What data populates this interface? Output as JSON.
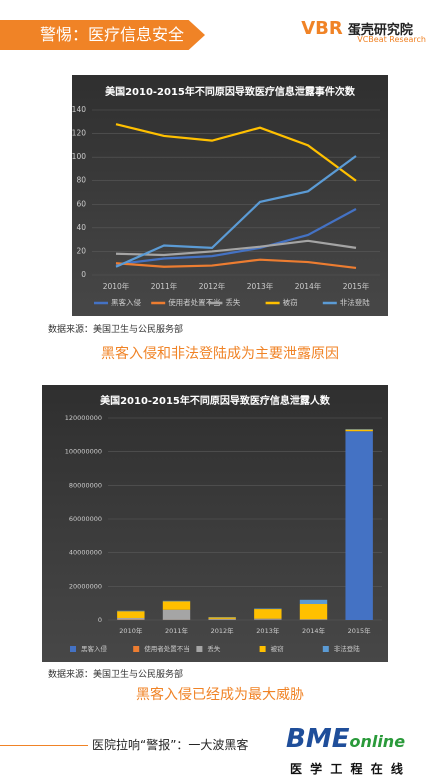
{
  "header": {
    "title": "警惕：医疗信息安全",
    "logo_mark": "VBR",
    "logo_name": "蛋壳研究院",
    "logo_sub": "VCBeat Research"
  },
  "chart_data": [
    {
      "type": "line",
      "title": "美国2010-2015年不同原因导致医疗信息泄露事件次数",
      "categories": [
        "2010年",
        "2011年",
        "2012年",
        "2013年",
        "2014年",
        "2015年"
      ],
      "ylim": [
        0,
        140
      ],
      "yticks": [
        0,
        20,
        40,
        60,
        80,
        100,
        120,
        140
      ],
      "grid": true,
      "series": [
        {
          "name": "黑客入侵",
          "color": "#4472c4",
          "values": [
            9,
            14,
            16,
            23,
            34,
            56
          ]
        },
        {
          "name": "使用者处置不当",
          "color": "#ed7d31",
          "values": [
            10,
            7,
            8,
            13,
            11,
            6
          ]
        },
        {
          "name": "丢失",
          "color": "#a5a5a5",
          "values": [
            18,
            17,
            20,
            24,
            29,
            23
          ]
        },
        {
          "name": "被窃",
          "color": "#ffc000",
          "values": [
            128,
            118,
            114,
            125,
            110,
            80
          ]
        },
        {
          "name": "非法登陆",
          "color": "#5b9bd5",
          "values": [
            7,
            25,
            23,
            62,
            71,
            101
          ]
        }
      ]
    },
    {
      "type": "bar",
      "stacked": true,
      "title": "美国2010-2015年不同原因导致医疗信息泄露人数",
      "categories": [
        "2010年",
        "2011年",
        "2012年",
        "2013年",
        "2014年",
        "2015年"
      ],
      "ylim": [
        0,
        120000000
      ],
      "yticks": [
        0,
        20000000,
        40000000,
        60000000,
        80000000,
        100000000,
        120000000
      ],
      "grid": true,
      "series": [
        {
          "name": "黑客入侵",
          "color": "#4472c4",
          "values": [
            0,
            0,
            0,
            200000,
            0,
            112000000
          ]
        },
        {
          "name": "使用者处置不当",
          "color": "#ed7d31",
          "values": [
            200000,
            100000,
            100000,
            100000,
            100000,
            100000
          ]
        },
        {
          "name": "丢失",
          "color": "#a5a5a5",
          "values": [
            1000000,
            6000000,
            600000,
            500000,
            400000,
            100000
          ]
        },
        {
          "name": "被窃",
          "color": "#ffc000",
          "values": [
            4000000,
            5000000,
            800000,
            5700000,
            9000000,
            900000
          ]
        },
        {
          "name": "非法登陆",
          "color": "#5b9bd5",
          "values": [
            300000,
            300000,
            200000,
            300000,
            2500000,
            300000
          ]
        }
      ]
    }
  ],
  "sections": [
    {
      "source": "数据来源：美国卫生与公民服务部",
      "caption": "黑客入侵和非法登陆成为主要泄露原因"
    },
    {
      "source": "数据来源：美国卫生与公民服务部",
      "caption": "黑客入侵已经成为最大威胁"
    }
  ],
  "footer": {
    "text": "医院拉响“警报”：一大波黑客",
    "logo": "BME",
    "logo_suffix": "online",
    "logo_sub": "医 学 工 程 在 线"
  }
}
